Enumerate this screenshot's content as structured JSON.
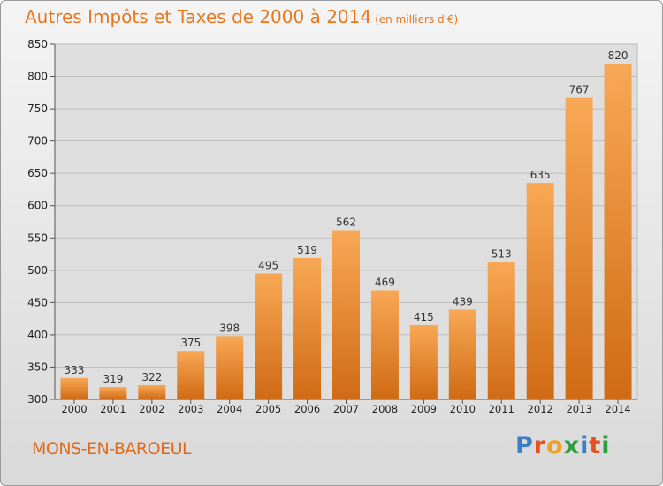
{
  "header": {
    "title": "Autres Impôts et Taxes de 2000 à 2014",
    "subtitle": "(en milliers d'€)"
  },
  "footer": {
    "town": "MONS-EN-BAROEUL",
    "logo": "Proxiti",
    "logo_letters": [
      {
        "char": "P",
        "color": "#3a7fc4"
      },
      {
        "char": "r",
        "color": "#e8501e"
      },
      {
        "char": "o",
        "color": "#f0a020"
      },
      {
        "char": "x",
        "color": "#2e9e3e"
      },
      {
        "char": "i",
        "color": "#3a7fc4"
      },
      {
        "char": "t",
        "color": "#e8501e"
      },
      {
        "char": "i",
        "color": "#2e9e3e"
      }
    ]
  },
  "colors": {
    "bar_light": "#f8a855",
    "bar_dark": "#d06a14",
    "accent": "#e8771e"
  },
  "chart_data": {
    "type": "bar",
    "categories": [
      "2000",
      "2001",
      "2002",
      "2003",
      "2004",
      "2005",
      "2006",
      "2007",
      "2008",
      "2009",
      "2010",
      "2011",
      "2012",
      "2013",
      "2014"
    ],
    "values": [
      333,
      319,
      322,
      375,
      398,
      495,
      519,
      562,
      469,
      415,
      439,
      513,
      635,
      767,
      820
    ],
    "title": "Autres Impôts et Taxes de 2000 à 2014",
    "subtitle": "(en milliers d'€)",
    "xlabel": "",
    "ylabel": "",
    "ylim": [
      300,
      850
    ],
    "yticks": [
      300,
      350,
      400,
      450,
      500,
      550,
      600,
      650,
      700,
      750,
      800,
      850
    ],
    "grid": true,
    "data_labels": true
  }
}
